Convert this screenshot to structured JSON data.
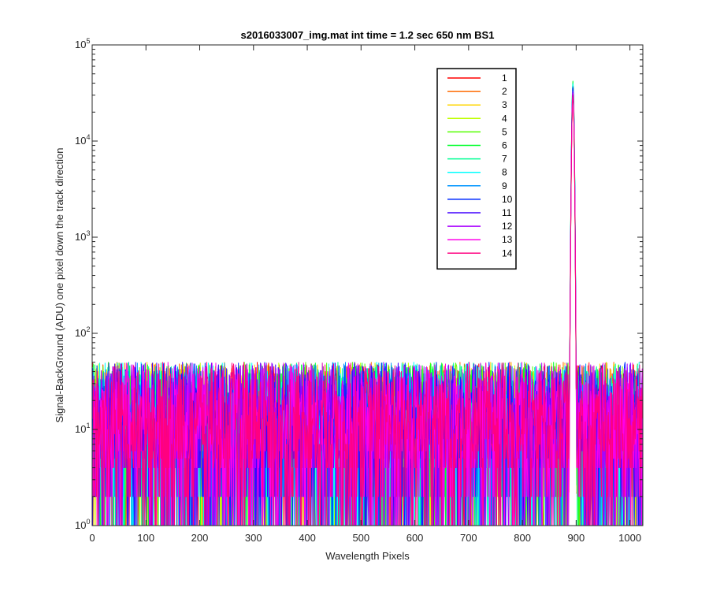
{
  "chart_data": {
    "type": "line",
    "title": "s2016033007_img.mat int time = 1.2 sec  650 nm BS1",
    "xlabel": "Wavelength Pixels",
    "ylabel": "Signal-BackGround (ADU) one pixel down the track direction",
    "xlim": [
      0,
      1024
    ],
    "ylim": [
      1,
      100000
    ],
    "yscale": "log",
    "xticks": [
      0,
      100,
      200,
      300,
      400,
      500,
      600,
      700,
      800,
      900,
      1000
    ],
    "xtick_labels": [
      "0",
      "100",
      "200",
      "300",
      "400",
      "500",
      "600",
      "700",
      "800",
      "900",
      "1000"
    ],
    "ytick_labels": [
      {
        "base": "10",
        "exp": "0",
        "value": 1
      },
      {
        "base": "10",
        "exp": "1",
        "value": 10
      },
      {
        "base": "10",
        "exp": "2",
        "value": 100
      },
      {
        "base": "10",
        "exp": "3",
        "value": 1000
      },
      {
        "base": "10",
        "exp": "4",
        "value": 10000
      },
      {
        "base": "10",
        "exp": "5",
        "value": 100000
      }
    ],
    "legend_position": "top-right",
    "noise_floor_typical": 12,
    "noise_floor_max": 50,
    "peak": {
      "x": 894,
      "y_min": 30000,
      "y_max": 42000
    },
    "series": [
      {
        "name": "1",
        "color": "#ff0000",
        "peak": 30000
      },
      {
        "name": "2",
        "color": "#ff6a00",
        "peak": 31000
      },
      {
        "name": "3",
        "color": "#ffd500",
        "peak": 32000
      },
      {
        "name": "4",
        "color": "#bfff00",
        "peak": 34000
      },
      {
        "name": "5",
        "color": "#55ff00",
        "peak": 38000
      },
      {
        "name": "6",
        "color": "#00ff2b",
        "peak": 42000
      },
      {
        "name": "7",
        "color": "#00ff95",
        "peak": 40000
      },
      {
        "name": "8",
        "color": "#00ffff",
        "peak": 39000
      },
      {
        "name": "9",
        "color": "#0095ff",
        "peak": 37000
      },
      {
        "name": "10",
        "color": "#002bff",
        "peak": 36000
      },
      {
        "name": "11",
        "color": "#4000ff",
        "peak": 35000
      },
      {
        "name": "12",
        "color": "#aa00ff",
        "peak": 33000
      },
      {
        "name": "13",
        "color": "#ff00ea",
        "peak": 31500
      },
      {
        "name": "14",
        "color": "#ff0080",
        "peak": 30000
      }
    ]
  }
}
